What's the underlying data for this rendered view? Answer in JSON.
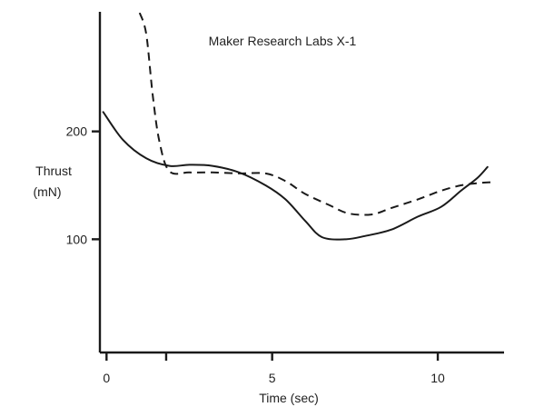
{
  "chart_data": {
    "type": "line",
    "title": "Maker Research Labs X-1",
    "xlabel": "Time (sec)",
    "ylabel_line1": "Thrust",
    "ylabel_line2": "(mN)",
    "xlim": [
      -0.2,
      12
    ],
    "ylim": [
      -5,
      305
    ],
    "x_ticks": [
      0,
      5,
      10
    ],
    "x_tick_labels": [
      "0",
      "5",
      "10"
    ],
    "x_extra_ticks": [
      1.8
    ],
    "y_ticks": [
      100,
      200
    ],
    "y_tick_labels": [
      "100",
      "200"
    ],
    "grid": false,
    "legend": "none",
    "line_color": "#1a1a1a",
    "series": [
      {
        "style": "solid",
        "x": [
          -0.1,
          0.5,
          1.2,
          1.9,
          2.5,
          3.2,
          4.0,
          4.8,
          5.4,
          6.0,
          6.5,
          7.2,
          7.8,
          8.6,
          9.4,
          10.1,
          10.7,
          11.2,
          11.5
        ],
        "y": [
          218,
          192,
          175,
          168,
          169,
          168,
          162,
          150,
          137,
          117,
          102,
          100,
          103,
          109,
          121,
          130,
          145,
          157,
          167
        ]
      },
      {
        "style": "dashed",
        "x": [
          1.0,
          1.2,
          1.4,
          1.6,
          1.9,
          2.5,
          3.2,
          4.0,
          4.8,
          5.4,
          6.0,
          6.7,
          7.3,
          8.0,
          8.6,
          9.4,
          10.1,
          10.7,
          11.2,
          11.7
        ],
        "y": [
          310,
          290,
          232,
          190,
          163,
          162,
          162,
          161,
          161,
          154,
          142,
          132,
          124,
          123,
          129,
          137,
          145,
          150,
          152,
          153
        ]
      }
    ]
  }
}
